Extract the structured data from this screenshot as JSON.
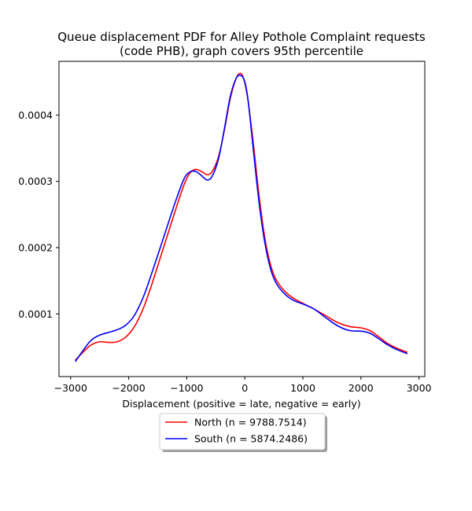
{
  "chart_data": {
    "type": "line",
    "title_line1": "Queue displacement PDF for Alley Pothole Complaint  requests",
    "title_line2": "(code PHB), graph covers 95th percentile",
    "xlabel": "Displacement (positive = late, negative = early)",
    "ylabel": "",
    "xlim": [
      -3200,
      3100
    ],
    "ylim": [
      5.5e-06,
      0.000481
    ],
    "x_ticks": [
      -3000,
      -2000,
      -1000,
      0,
      1000,
      2000,
      3000
    ],
    "x_tick_labels": [
      "−3000",
      "−2000",
      "−1000",
      "0",
      "1000",
      "2000",
      "3000"
    ],
    "y_ticks": [
      0.0001,
      0.0002,
      0.0003,
      0.0004
    ],
    "y_tick_labels": [
      "0.0001",
      "0.0002",
      "0.0003",
      "0.0004"
    ],
    "grid": false,
    "legend_position": "below-center",
    "series": [
      {
        "name": "North (n = 9788.7514)",
        "color": "#ff0000",
        "points": [
          [
            -2920,
            3e-05
          ],
          [
            -2800,
            4.1e-05
          ],
          [
            -2650,
            5.3e-05
          ],
          [
            -2500,
            5.8e-05
          ],
          [
            -2350,
            5.7e-05
          ],
          [
            -2200,
            5.8e-05
          ],
          [
            -2050,
            6.5e-05
          ],
          [
            -1900,
            8.1e-05
          ],
          [
            -1750,
            0.000108
          ],
          [
            -1600,
            0.000145
          ],
          [
            -1400,
            0.0002
          ],
          [
            -1200,
            0.000255
          ],
          [
            -1050,
            0.000294
          ],
          [
            -950,
            0.000312
          ],
          [
            -850,
            0.000318
          ],
          [
            -750,
            0.000315
          ],
          [
            -650,
            0.00031
          ],
          [
            -560,
            0.000315
          ],
          [
            -450,
            0.000338
          ],
          [
            -350,
            0.000378
          ],
          [
            -250,
            0.000425
          ],
          [
            -150,
            0.000455
          ],
          [
            -80,
            0.000463
          ],
          [
            -20,
            0.000455
          ],
          [
            50,
            0.000425
          ],
          [
            150,
            0.000355
          ],
          [
            250,
            0.000275
          ],
          [
            350,
            0.000212
          ],
          [
            450,
            0.000172
          ],
          [
            550,
            0.00015
          ],
          [
            700,
            0.000133
          ],
          [
            850,
            0.000123
          ],
          [
            1000,
            0.000116
          ],
          [
            1200,
            0.000107
          ],
          [
            1400,
            9.7e-05
          ],
          [
            1600,
            8.7e-05
          ],
          [
            1800,
            8.1e-05
          ],
          [
            2000,
            7.9e-05
          ],
          [
            2150,
            7.5e-05
          ],
          [
            2300,
            6.6e-05
          ],
          [
            2450,
            5.6e-05
          ],
          [
            2600,
            4.9e-05
          ],
          [
            2800,
            4.2e-05
          ]
        ]
      },
      {
        "name": "South (n = 5874.2486)",
        "color": "#0000ff",
        "points": [
          [
            -2920,
            2.8e-05
          ],
          [
            -2800,
            4.3e-05
          ],
          [
            -2650,
            6e-05
          ],
          [
            -2500,
            6.8e-05
          ],
          [
            -2350,
            7.2e-05
          ],
          [
            -2200,
            7.6e-05
          ],
          [
            -2050,
            8.3e-05
          ],
          [
            -1900,
            9.8e-05
          ],
          [
            -1750,
            0.000125
          ],
          [
            -1600,
            0.000162
          ],
          [
            -1400,
            0.000215
          ],
          [
            -1200,
            0.000268
          ],
          [
            -1050,
            0.000303
          ],
          [
            -950,
            0.000314
          ],
          [
            -850,
            0.000315
          ],
          [
            -750,
            0.000309
          ],
          [
            -650,
            0.000302
          ],
          [
            -560,
            0.000308
          ],
          [
            -450,
            0.000335
          ],
          [
            -350,
            0.00038
          ],
          [
            -250,
            0.000428
          ],
          [
            -150,
            0.000455
          ],
          [
            -70,
            0.00046
          ],
          [
            0,
            0.00045
          ],
          [
            60,
            0.00042
          ],
          [
            150,
            0.000345
          ],
          [
            250,
            0.000265
          ],
          [
            350,
            0.000205
          ],
          [
            450,
            0.000166
          ],
          [
            550,
            0.000145
          ],
          [
            700,
            0.000129
          ],
          [
            850,
            0.00012
          ],
          [
            1000,
            0.000115
          ],
          [
            1200,
            0.000107
          ],
          [
            1400,
            9.4e-05
          ],
          [
            1600,
            8.2e-05
          ],
          [
            1800,
            7.5e-05
          ],
          [
            2000,
            7.4e-05
          ],
          [
            2150,
            7.1e-05
          ],
          [
            2300,
            6.3e-05
          ],
          [
            2450,
            5.4e-05
          ],
          [
            2600,
            4.7e-05
          ],
          [
            2800,
            4e-05
          ]
        ]
      }
    ]
  }
}
